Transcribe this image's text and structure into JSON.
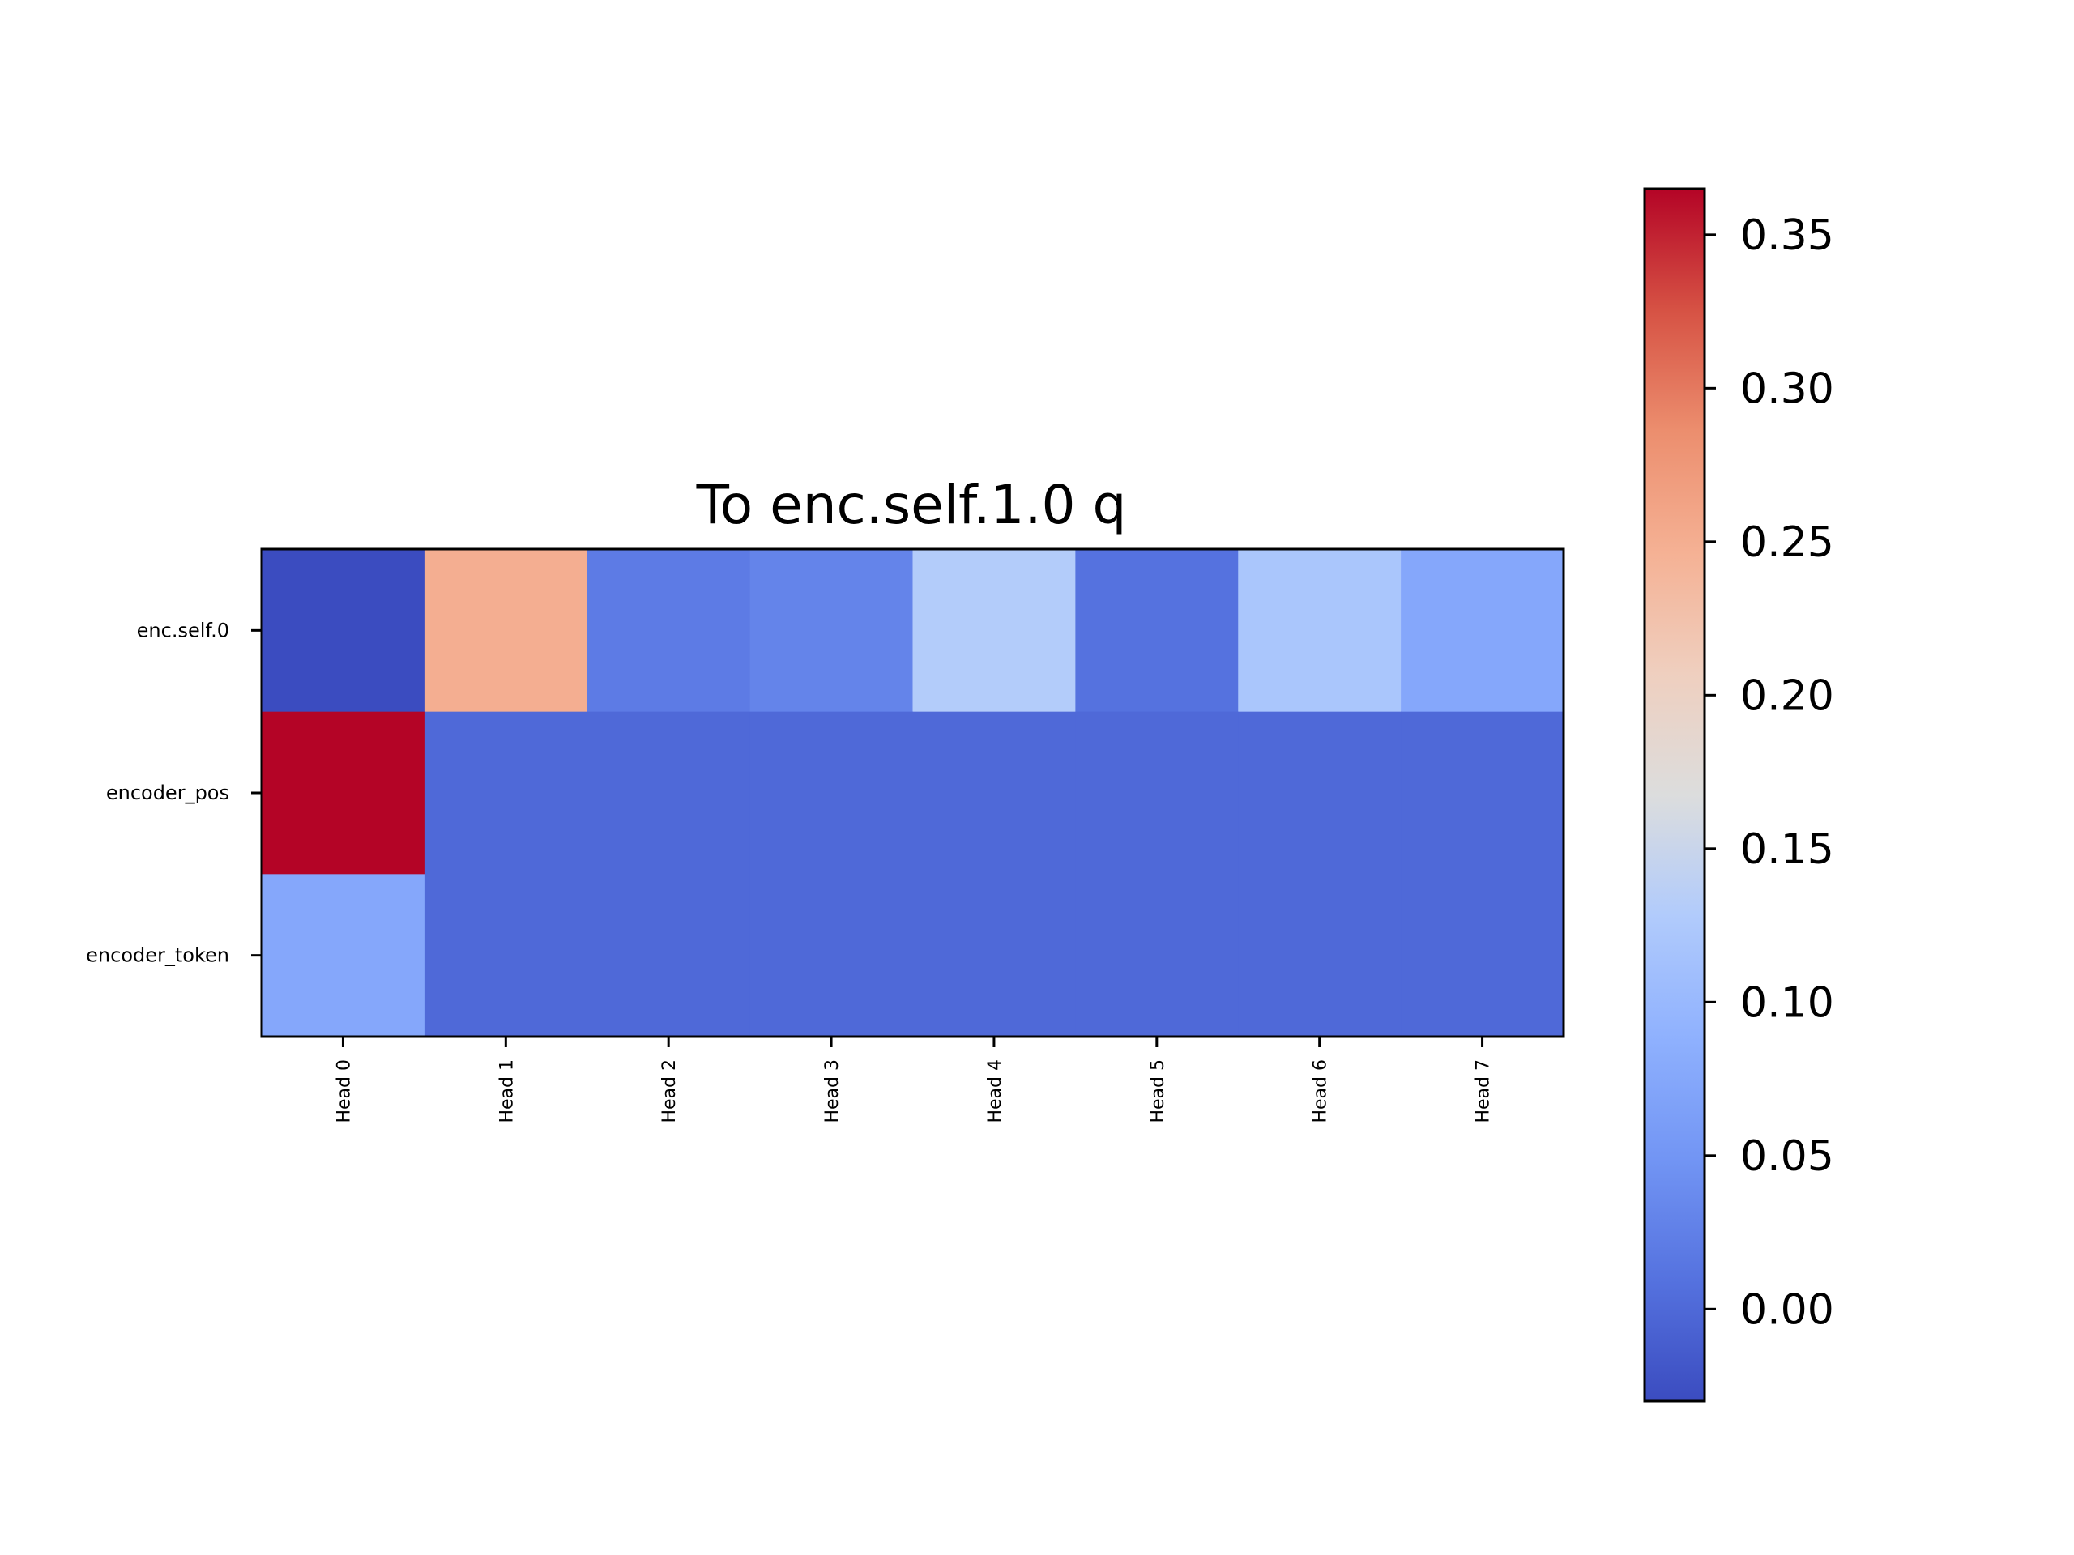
{
  "chart_data": {
    "type": "heatmap",
    "title": "To enc.self.1.0 q",
    "xlabel": "",
    "ylabel": "",
    "x_categories": [
      "Head 0",
      "Head 1",
      "Head 2",
      "Head 3",
      "Head 4",
      "Head 5",
      "Head 6",
      "Head 7"
    ],
    "y_categories": [
      "enc.self.0",
      "encoder_pos",
      "encoder_token"
    ],
    "values": [
      [
        -0.03,
        0.25,
        0.02,
        0.03,
        0.13,
        0.01,
        0.12,
        0.075
      ],
      [
        0.365,
        0.0,
        0.0,
        0.0,
        0.0,
        0.0,
        0.0,
        0.0
      ],
      [
        0.075,
        0.0,
        0.0,
        0.0,
        0.0,
        0.0,
        0.0,
        0.0
      ]
    ],
    "colormap": "coolwarm",
    "colorbar": {
      "vmin": -0.03,
      "vmax": 0.365,
      "ticks": [
        0.0,
        0.05,
        0.1,
        0.15,
        0.2,
        0.25,
        0.3,
        0.35
      ],
      "tick_labels": [
        "0.00",
        "0.05",
        "0.10",
        "0.15",
        "0.20",
        "0.25",
        "0.30",
        "0.35"
      ]
    },
    "grid": false
  }
}
